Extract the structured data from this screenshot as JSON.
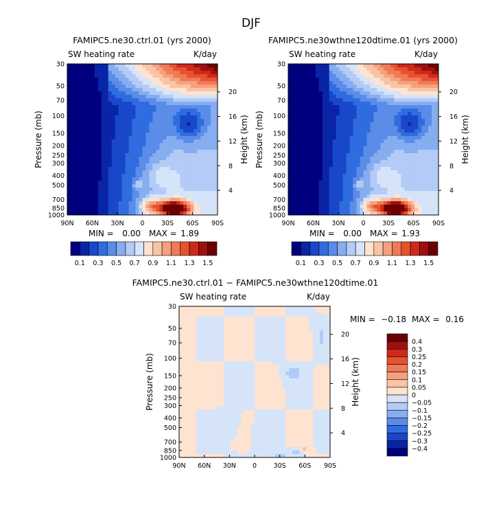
{
  "figure": {
    "title": "DJF"
  },
  "chart_data": [
    {
      "type": "heatmap",
      "title": "FAMIPC5.ne30.ctrl.01 (yrs 2000)",
      "left_label": "SW heating rate",
      "right_label": "K/day",
      "ylabel": "Pressure (mb)",
      "y2label": "Height (km)",
      "x_ticks": [
        "90N",
        "60N",
        "30N",
        "0",
        "30S",
        "60S",
        "90S"
      ],
      "y_ticks": [
        30,
        50,
        70,
        100,
        150,
        200,
        250,
        300,
        400,
        500,
        700,
        850,
        1000
      ],
      "y2_ticks": [
        20,
        16,
        12,
        8,
        4
      ],
      "ylim": [
        1000,
        30
      ],
      "xlim": [
        90,
        -90
      ],
      "min_label": "MIN =",
      "min_value": "0.00",
      "max_label": "MAX =",
      "max_value": "1.89",
      "colorbar_labels": [
        "0.1",
        "0.3",
        "0.5",
        "0.7",
        "0.9",
        "1.1",
        "1.3",
        "1.5"
      ],
      "levels": [
        0.1,
        0.2,
        0.3,
        0.4,
        0.5,
        0.6,
        0.7,
        0.8,
        0.9,
        1.0,
        1.1,
        1.2,
        1.3,
        1.4,
        1.5
      ],
      "colors": [
        "#00007f",
        "#0a24a6",
        "#1848c9",
        "#2f6ce0",
        "#5a8ce8",
        "#86adf0",
        "#b3cbf6",
        "#d6e4fa",
        "#fde3d0",
        "#f9c3a5",
        "#f5a17e",
        "#f07a55",
        "#e6512f",
        "#cd2a1a",
        "#9e1010",
        "#6b0000"
      ],
      "peak": {
        "value": 1.89,
        "lat": -38,
        "pressure": 860
      }
    },
    {
      "type": "heatmap",
      "title": "FAMIPC5.ne30wthne120dtime.01 (yrs 2000)",
      "left_label": "SW heating rate",
      "right_label": "K/day",
      "ylabel": "Pressure (mb)",
      "y2label": "Height (km)",
      "x_ticks": [
        "90N",
        "60N",
        "30N",
        "0",
        "30S",
        "60S",
        "90S"
      ],
      "y_ticks": [
        30,
        50,
        70,
        100,
        150,
        200,
        250,
        300,
        400,
        500,
        700,
        850,
        1000
      ],
      "y2_ticks": [
        20,
        16,
        12,
        8,
        4
      ],
      "ylim": [
        1000,
        30
      ],
      "xlim": [
        90,
        -90
      ],
      "min_label": "MIN =",
      "min_value": "0.00",
      "max_label": "MAX =",
      "max_value": "1.93",
      "colorbar_labels": [
        "0.1",
        "0.3",
        "0.5",
        "0.7",
        "0.9",
        "1.1",
        "1.3",
        "1.5"
      ],
      "levels": [
        0.1,
        0.2,
        0.3,
        0.4,
        0.5,
        0.6,
        0.7,
        0.8,
        0.9,
        1.0,
        1.1,
        1.2,
        1.3,
        1.4,
        1.5
      ],
      "colors": [
        "#00007f",
        "#0a24a6",
        "#1848c9",
        "#2f6ce0",
        "#5a8ce8",
        "#86adf0",
        "#b3cbf6",
        "#d6e4fa",
        "#fde3d0",
        "#f9c3a5",
        "#f5a17e",
        "#f07a55",
        "#e6512f",
        "#cd2a1a",
        "#9e1010",
        "#6b0000"
      ],
      "peak": {
        "value": 1.93,
        "lat": -38,
        "pressure": 860
      }
    },
    {
      "type": "heatmap",
      "title": "FAMIPC5.ne30.ctrl.01 − FAMIPC5.ne30wthne120dtime.01",
      "left_label": "SW heating rate",
      "right_label": "K/day",
      "ylabel": "Pressure (mb)",
      "y2label": "Height (km)",
      "x_ticks": [
        "90N",
        "60N",
        "30N",
        "0",
        "30S",
        "60S",
        "90S"
      ],
      "y_ticks": [
        30,
        50,
        70,
        100,
        150,
        200,
        250,
        300,
        400,
        500,
        700,
        850,
        1000
      ],
      "y2_ticks": [
        20,
        16,
        12,
        8,
        4
      ],
      "ylim": [
        1000,
        30
      ],
      "xlim": [
        90,
        -90
      ],
      "min_label": "MIN =",
      "min_value": "−0.18",
      "max_label": "MAX =",
      "max_value": "0.16",
      "colorbar_labels": [
        "0.4",
        "0.3",
        "0.25",
        "0.2",
        "0.15",
        "0.1",
        "0.05",
        "0",
        "−0.05",
        "−0.1",
        "−0.15",
        "−0.2",
        "−0.25",
        "−0.3",
        "−0.4"
      ],
      "levels": [
        -0.4,
        -0.3,
        -0.25,
        -0.2,
        -0.15,
        -0.1,
        -0.05,
        0,
        0.05,
        0.1,
        0.15,
        0.2,
        0.25,
        0.3,
        0.4
      ],
      "colors": [
        "#00007f",
        "#0a24a6",
        "#1848c9",
        "#2f6ce0",
        "#5a8ce8",
        "#86adf0",
        "#b3cbf6",
        "#d6e4fa",
        "#fde3d0",
        "#f9c3a5",
        "#f5a17e",
        "#f07a55",
        "#e6512f",
        "#cd2a1a",
        "#9e1010",
        "#6b0000"
      ]
    }
  ]
}
